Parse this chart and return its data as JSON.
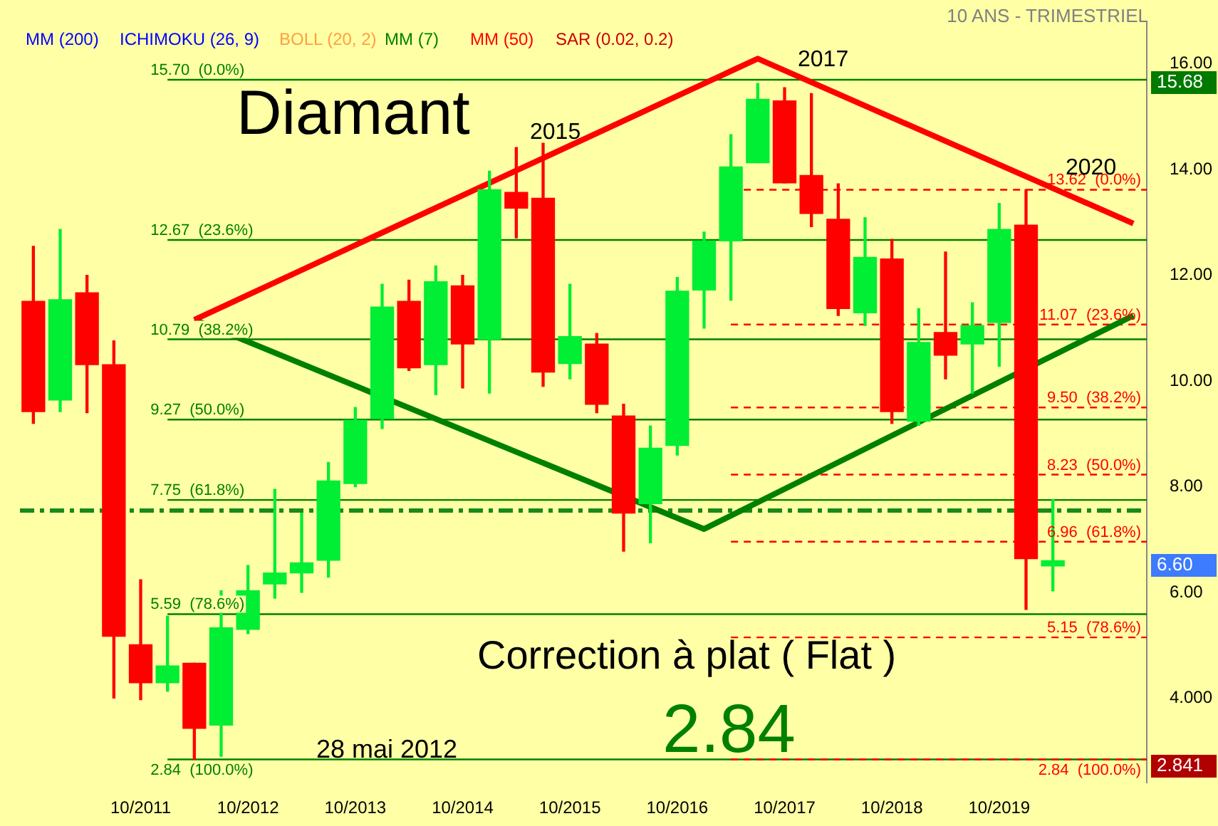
{
  "chart_data": {
    "type": "candlestick",
    "categories": [
      null,
      null,
      null,
      null,
      "10/2011",
      null,
      null,
      null,
      "10/2012",
      null,
      null,
      null,
      "10/2013",
      null,
      null,
      null,
      "10/2014",
      null,
      null,
      null,
      "10/2015",
      null,
      null,
      null,
      "10/2016",
      null,
      null,
      null,
      "10/2017",
      null,
      null,
      null,
      "10/2018",
      null,
      null,
      null,
      "10/2019",
      null,
      null,
      null,
      null,
      null
    ],
    "ohlc": [
      [
        11.51,
        12.55,
        9.2,
        9.42
      ],
      [
        9.64,
        12.87,
        9.42,
        11.54
      ],
      [
        11.67,
        12.0,
        9.4,
        10.31
      ],
      [
        10.31,
        10.76,
        4.0,
        5.17
      ],
      [
        5.01,
        6.24,
        3.97,
        4.29
      ],
      [
        4.29,
        5.55,
        4.13,
        4.61
      ],
      [
        4.66,
        4.66,
        2.84,
        3.43
      ],
      [
        3.49,
        6.03,
        2.9,
        5.33
      ],
      [
        5.3,
        6.51,
        5.22,
        6.03
      ],
      [
        6.16,
        7.95,
        5.89,
        6.37
      ],
      [
        6.37,
        7.5,
        6.0,
        6.56
      ],
      [
        6.61,
        8.46,
        6.29,
        8.11
      ],
      [
        8.06,
        9.5,
        8.0,
        9.26
      ],
      [
        9.29,
        11.83,
        9.1,
        11.4
      ],
      [
        11.51,
        11.91,
        10.2,
        10.25
      ],
      [
        10.31,
        12.18,
        9.74,
        11.88
      ],
      [
        11.8,
        12.0,
        9.87,
        10.7
      ],
      [
        10.79,
        13.97,
        9.77,
        13.62
      ],
      [
        13.57,
        14.42,
        12.71,
        13.27
      ],
      [
        13.46,
        14.5,
        9.9,
        10.17
      ],
      [
        10.33,
        11.83,
        10.04,
        10.84
      ],
      [
        10.7,
        10.9,
        9.4,
        9.56
      ],
      [
        9.34,
        9.56,
        6.78,
        7.5
      ],
      [
        7.68,
        9.15,
        6.94,
        8.73
      ],
      [
        8.78,
        11.96,
        8.6,
        11.7
      ],
      [
        11.72,
        12.82,
        11.0,
        12.65
      ],
      [
        12.65,
        14.66,
        11.53,
        14.05
      ],
      [
        14.13,
        15.63,
        14.13,
        15.33
      ],
      [
        15.3,
        15.55,
        13.75,
        13.75
      ],
      [
        13.89,
        15.44,
        12.92,
        13.17
      ],
      [
        13.06,
        13.73,
        11.24,
        11.37
      ],
      [
        11.29,
        13.09,
        11.05,
        12.34
      ],
      [
        12.31,
        12.68,
        9.2,
        9.42
      ],
      [
        9.24,
        11.37,
        9.16,
        10.73
      ],
      [
        10.92,
        12.44,
        10.04,
        10.49
      ],
      [
        10.7,
        11.48,
        9.77,
        11.05
      ],
      [
        11.11,
        13.36,
        10.28,
        12.87
      ],
      [
        12.95,
        13.62,
        5.68,
        6.64
      ],
      [
        6.5,
        7.76,
        6.03,
        6.6
      ],
      null,
      null,
      null
    ],
    "colors": [
      "#ff0000",
      "#00ee33",
      "#ff0000",
      "#ff0000",
      "#ff0000",
      "#00ee33",
      "#ff0000",
      "#00ee33",
      "#00ee33",
      "#00ee33",
      "#00ee33",
      "#00ee33",
      "#00ee33",
      "#00ee33",
      "#ff0000",
      "#00ee33",
      "#ff0000",
      "#00ee33",
      "#ff0000",
      "#ff0000",
      "#00ee33",
      "#ff0000",
      "#ff0000",
      "#00ee33",
      "#00ee33",
      "#00ee33",
      "#00ee33",
      "#00ee33",
      "#ff0000",
      "#ff0000",
      "#ff0000",
      "#00ee33",
      "#ff0000",
      "#00ee33",
      "#ff0000",
      "#00ee33",
      "#00ee33",
      "#ff0000",
      "#00ee33",
      null,
      null,
      null
    ],
    "series": [
      {
        "type": "line",
        "color": "#ff0000",
        "values": [
          null,
          null,
          null,
          null,
          null,
          null,
          11.16,
          null,
          null,
          null,
          null,
          null,
          null,
          null,
          null,
          null,
          null,
          null,
          null,
          null,
          null,
          null,
          null,
          null,
          null,
          null,
          null,
          16.1,
          null,
          null,
          null,
          null,
          null,
          null,
          null,
          null,
          null,
          null,
          null,
          null,
          null,
          12.98
        ]
      },
      {
        "type": "line",
        "color": "#008000",
        "values": [
          null,
          null,
          null,
          null,
          null,
          null,
          11.16,
          null,
          null,
          null,
          null,
          null,
          null,
          null,
          null,
          null,
          null,
          null,
          null,
          null,
          null,
          null,
          null,
          null,
          null,
          7.2,
          null,
          null,
          null,
          null,
          null,
          null,
          null,
          null,
          null,
          null,
          null,
          null,
          null,
          null,
          null,
          11.24
        ]
      }
    ],
    "ylim": [
      2.4,
      16.8
    ],
    "yticks": [
      {
        "value": 16,
        "label": "16.00"
      },
      {
        "value": 14,
        "label": "14.00"
      },
      {
        "value": 12,
        "label": "12.00"
      },
      {
        "value": 10,
        "label": "10.00"
      },
      {
        "value": 8,
        "label": "8.00"
      },
      {
        "value": 6,
        "label": "6.00"
      },
      {
        "value": 4,
        "label": "4.000"
      }
    ],
    "ref_lines": [
      {
        "axis": "y",
        "value": 15.7,
        "label": "15.70  (0.0%)",
        "color": "#008000",
        "line_style": "solid"
      },
      {
        "axis": "y",
        "value": 12.67,
        "label": "12.67  (23.6%)",
        "color": "#008000",
        "line_style": "solid"
      },
      {
        "axis": "y",
        "value": 10.79,
        "label": "10.79  (38.2%)",
        "color": "#008000",
        "line_style": "solid"
      },
      {
        "axis": "y",
        "value": 9.27,
        "label": "9.27  (50.0%)",
        "color": "#008000",
        "line_style": "solid"
      },
      {
        "axis": "y",
        "value": 7.75,
        "label": "7.75  (61.8%)",
        "color": "#008000",
        "line_style": "solid"
      },
      {
        "axis": "y",
        "value": 5.59,
        "label": "5.59  (78.6%)",
        "color": "#008000",
        "line_style": "solid"
      },
      {
        "axis": "y",
        "value": 2.84,
        "label": "2.84  (100.0%)",
        "color": "#008000",
        "line_style": "solid"
      },
      {
        "axis": "y",
        "value": 7.55,
        "color": "#1a8a1a",
        "line_style": "dashed"
      },
      {
        "axis": "y",
        "value": 13.62,
        "label": "13.62  (0.0%)",
        "color": "#ff0000",
        "line_style": "dashed"
      },
      {
        "axis": "y",
        "value": 11.07,
        "label": "11.07  (23.6%)",
        "color": "#ff0000",
        "line_style": "dashed"
      },
      {
        "axis": "y",
        "value": 9.5,
        "label": "9.50  (38.2%)",
        "color": "#ff0000",
        "line_style": "dashed"
      },
      {
        "axis": "y",
        "value": 8.23,
        "label": "8.23  (50.0%)",
        "color": "#ff0000",
        "line_style": "dashed"
      },
      {
        "axis": "y",
        "value": 6.96,
        "label": "6.96  (61.8%)",
        "color": "#ff0000",
        "line_style": "dashed"
      },
      {
        "axis": "y",
        "value": 5.15,
        "label": "5.15  (78.6%)",
        "color": "#ff0000",
        "line_style": "dashed"
      },
      {
        "axis": "y",
        "value": 2.84,
        "label": "2.84  (100.0%)",
        "color": "#ff0000",
        "line_style": "dashed"
      }
    ],
    "annotations": [
      "10 ANS - TRIMESTRIEL",
      "MM (200)",
      "ICHIMOKU (26, 9)",
      "BOLL (20, 2)",
      "MM (7)",
      "MM (50)",
      "SAR (0.02, 0.2)",
      "Diamant",
      "2015",
      "2017",
      "2020",
      "Correction à plat ( Flat )",
      "2.84",
      "28 mai 2012",
      "15.68",
      "6.60",
      "2.841"
    ]
  }
}
